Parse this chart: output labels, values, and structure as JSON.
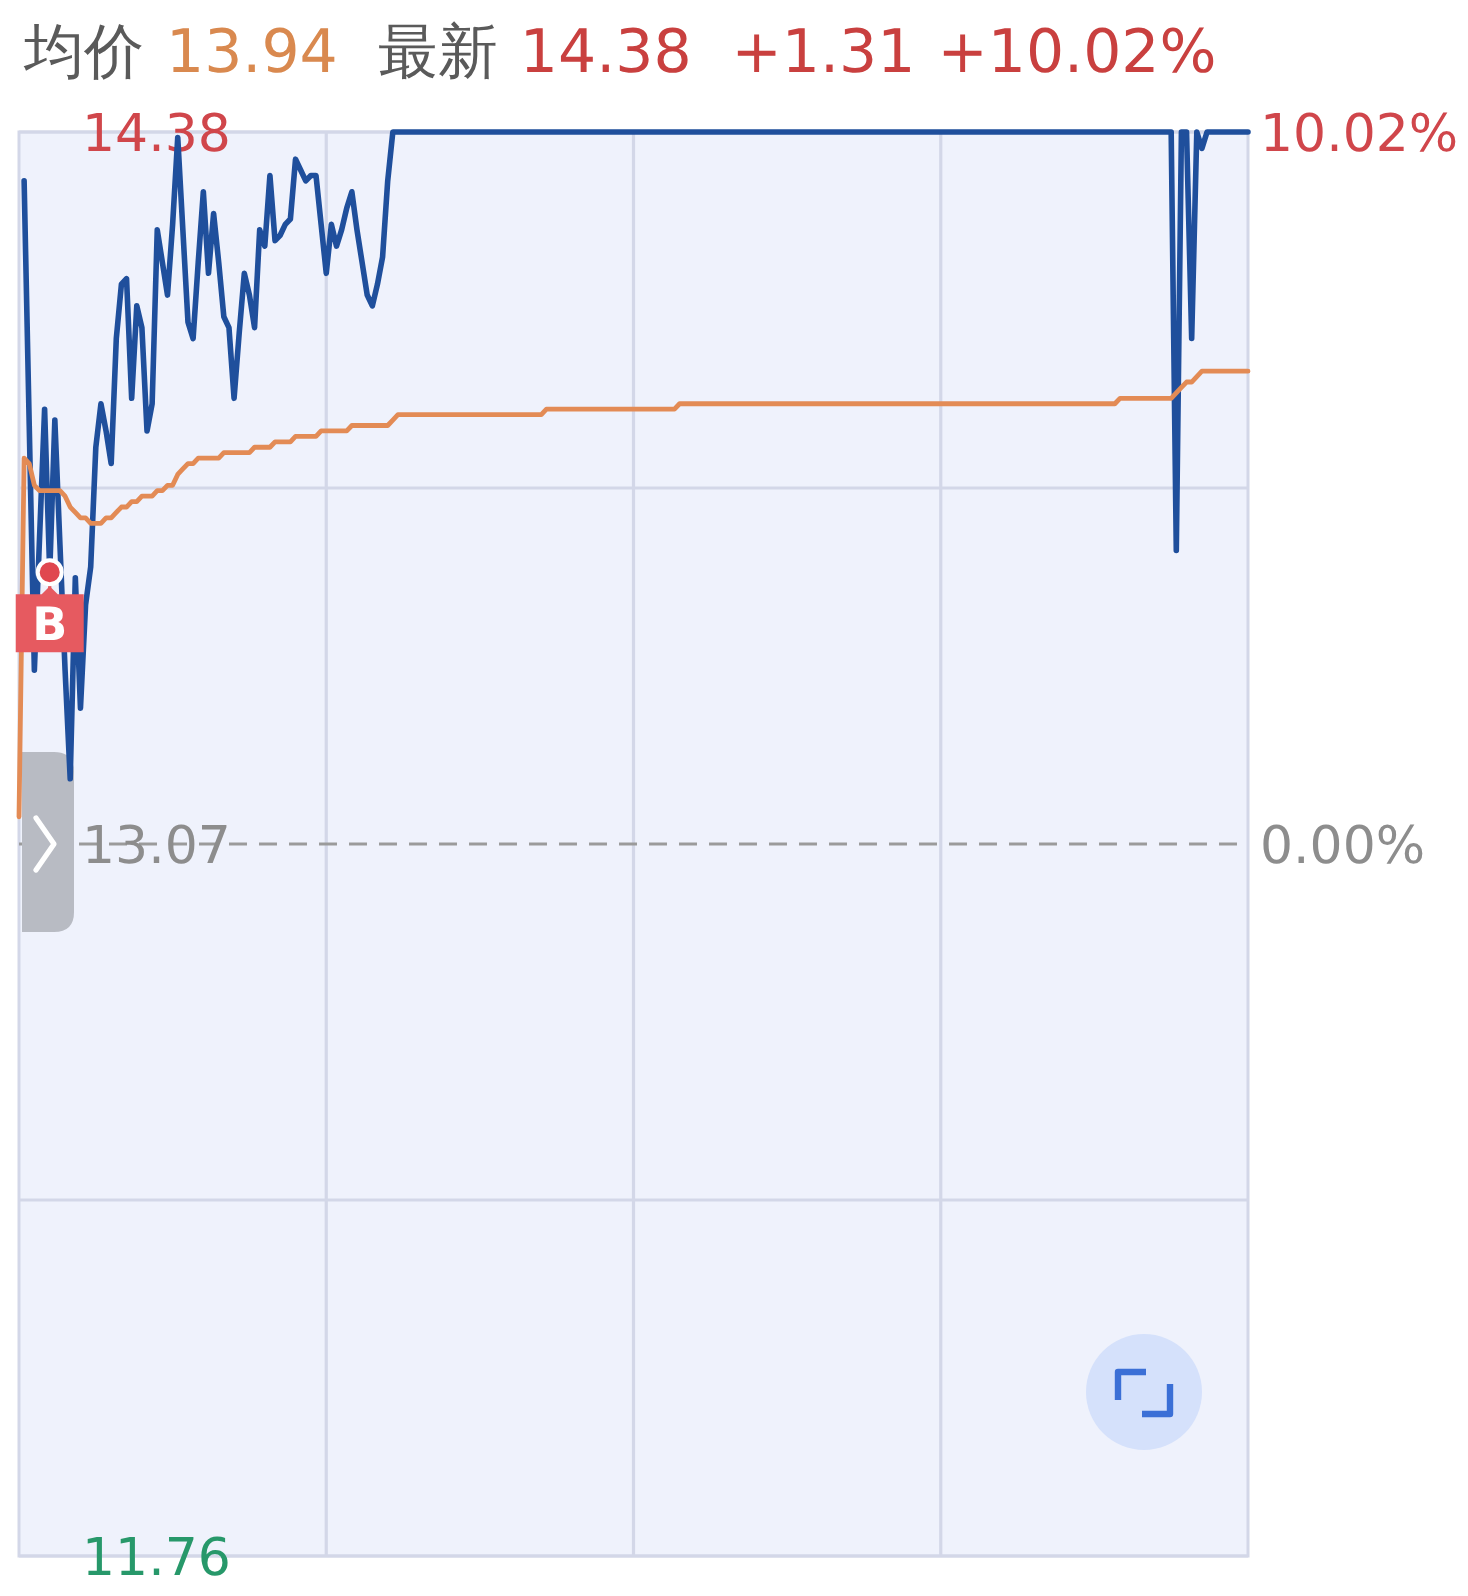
{
  "chart_data": {
    "type": "line",
    "annotations": [
      "均价",
      "13.94",
      "最新",
      "14.38",
      "+1.31",
      "+10.02%"
    ],
    "categories": [
      null,
      null,
      null,
      null,
      null,
      null,
      null,
      null,
      null,
      null,
      null,
      null,
      null,
      null,
      null,
      null,
      null,
      null,
      null,
      null,
      null,
      null,
      null,
      null,
      null,
      null,
      null,
      null,
      null,
      null,
      null,
      null,
      null,
      null,
      null,
      null,
      null,
      null,
      null,
      null,
      null,
      null,
      null,
      null,
      null,
      null,
      null,
      null,
      null,
      null,
      null,
      null,
      null,
      null,
      null,
      null,
      null,
      null,
      null,
      null,
      null,
      null,
      null,
      null,
      null,
      null,
      null,
      null,
      null,
      null,
      null,
      null,
      null,
      null,
      null,
      null,
      null,
      null,
      null,
      null,
      null,
      null,
      null,
      null,
      null,
      null,
      null,
      null,
      null,
      null,
      null,
      null,
      null,
      null,
      null,
      null,
      null,
      null,
      null,
      null,
      null,
      null,
      null,
      null,
      null,
      null,
      null,
      null,
      null,
      null,
      null,
      null,
      null,
      null,
      null,
      null,
      null,
      null,
      null,
      null,
      null,
      null,
      null,
      null,
      null,
      null,
      null,
      null,
      null,
      null,
      null,
      null,
      null,
      null,
      null,
      null,
      null,
      null,
      null,
      null,
      null,
      null,
      null,
      null,
      null,
      null,
      null,
      null,
      null,
      null,
      null,
      null,
      null,
      null,
      null,
      null,
      null,
      null,
      null,
      null,
      null,
      null,
      null,
      null,
      null,
      null,
      null,
      null,
      null,
      null,
      null,
      null,
      null,
      null,
      null,
      null,
      null,
      null,
      null,
      null,
      null,
      null,
      null,
      null,
      null,
      null,
      null,
      null,
      null,
      null,
      null,
      null,
      null,
      null,
      null,
      null,
      null,
      null,
      null,
      null,
      null,
      null,
      null,
      null,
      null,
      null,
      null,
      null,
      null,
      null,
      null,
      null,
      null,
      null,
      null,
      null,
      null,
      null,
      null,
      null,
      null,
      null,
      null,
      null,
      null,
      null,
      null,
      null,
      null,
      null,
      null,
      null,
      null,
      null,
      null,
      null,
      null,
      null,
      null,
      null,
      null
    ],
    "series": [
      {
        "color": "#1f4f9c",
        "values": [
          null,
          14.29,
          13.84,
          13.39,
          13.63,
          13.87,
          13.57,
          13.85,
          13.62,
          13.39,
          13.19,
          13.56,
          13.32,
          13.51,
          13.58,
          13.8,
          13.88,
          13.83,
          13.77,
          14.0,
          14.1,
          14.11,
          13.89,
          14.06,
          14.02,
          13.83,
          13.88,
          14.2,
          14.14,
          14.08,
          14.21,
          14.37,
          14.2,
          14.03,
          14.0,
          14.14,
          14.27,
          14.12,
          14.23,
          14.14,
          14.04,
          14.02,
          13.89,
          14.01,
          14.12,
          14.08,
          14.02,
          14.2,
          14.17,
          14.3,
          14.18,
          14.19,
          14.21,
          14.22,
          14.33,
          14.31,
          14.29,
          14.3,
          14.3,
          14.21,
          14.12,
          14.21,
          14.17,
          14.2,
          14.24,
          14.27,
          14.2,
          14.14,
          14.08,
          14.06,
          14.1,
          14.15,
          14.29,
          14.38,
          14.38,
          14.38,
          14.38,
          14.38,
          14.38,
          14.38,
          14.38,
          14.38,
          14.38,
          14.38,
          14.38,
          14.38,
          14.38,
          14.38,
          14.38,
          14.38,
          14.38,
          14.38,
          14.38,
          14.38,
          14.38,
          14.38,
          14.38,
          14.38,
          14.38,
          14.38,
          14.38,
          14.38,
          14.38,
          14.38,
          14.38,
          14.38,
          14.38,
          14.38,
          14.38,
          14.38,
          14.38,
          14.38,
          14.38,
          14.38,
          14.38,
          14.38,
          14.38,
          14.38,
          14.38,
          14.38,
          14.38,
          14.38,
          14.38,
          14.38,
          14.38,
          14.38,
          14.38,
          14.38,
          14.38,
          14.38,
          14.38,
          14.38,
          14.38,
          14.38,
          14.38,
          14.38,
          14.38,
          14.38,
          14.38,
          14.38,
          14.38,
          14.38,
          14.38,
          14.38,
          14.38,
          14.38,
          14.38,
          14.38,
          14.38,
          14.38,
          14.38,
          14.38,
          14.38,
          14.38,
          14.38,
          14.38,
          14.38,
          14.38,
          14.38,
          14.38,
          14.38,
          14.38,
          14.38,
          14.38,
          14.38,
          14.38,
          14.38,
          14.38,
          14.38,
          14.38,
          14.38,
          14.38,
          14.38,
          14.38,
          14.38,
          14.38,
          14.38,
          14.38,
          14.38,
          14.38,
          14.38,
          14.38,
          14.38,
          14.38,
          14.38,
          14.38,
          14.38,
          14.38,
          14.38,
          14.38,
          14.38,
          14.38,
          14.38,
          14.38,
          14.38,
          14.38,
          14.38,
          14.38,
          14.38,
          14.38,
          14.38,
          14.38,
          14.38,
          14.38,
          14.38,
          14.38,
          14.38,
          14.38,
          14.38,
          14.38,
          14.38,
          14.38,
          14.38,
          14.38,
          14.38,
          14.38,
          14.38,
          14.38,
          14.38,
          14.38,
          14.38,
          14.38,
          14.38,
          14.38,
          14.38,
          14.38,
          13.61,
          14.38,
          14.38,
          14.0,
          14.38,
          14.35,
          14.38,
          14.38,
          14.38,
          14.38,
          14.38,
          14.38,
          14.38,
          14.38,
          14.38
        ],
        "value_labels": [
          null,
          null,
          null,
          null,
          null,
          null,
          "B",
          null,
          null,
          null,
          null,
          null,
          null,
          null,
          null,
          null,
          null,
          null,
          null,
          null,
          null,
          null,
          null,
          null,
          null,
          null,
          null,
          null,
          null,
          null,
          null,
          null,
          null,
          null,
          null,
          null,
          null,
          null,
          null,
          null,
          null,
          null,
          null,
          null,
          null,
          null,
          null,
          null,
          null,
          null,
          null,
          null,
          null,
          null,
          null,
          null,
          null,
          null,
          null,
          null,
          null,
          null,
          null,
          null,
          null,
          null,
          null,
          null,
          null,
          null,
          null,
          null,
          null,
          null,
          null,
          null,
          null,
          null,
          null,
          null,
          null,
          null,
          null,
          null,
          null,
          null,
          null,
          null,
          null,
          null,
          null,
          null,
          null,
          null,
          null,
          null,
          null,
          null,
          null,
          null,
          null,
          null,
          null,
          null,
          null,
          null,
          null,
          null,
          null,
          null,
          null,
          null,
          null,
          null,
          null,
          null,
          null,
          null,
          null,
          null,
          null,
          null,
          null,
          null,
          null,
          null,
          null,
          null,
          null,
          null,
          null,
          null,
          null,
          null,
          null,
          null,
          null,
          null,
          null,
          null,
          null,
          null,
          null,
          null,
          null,
          null,
          null,
          null,
          null,
          null,
          null,
          null,
          null,
          null,
          null,
          null,
          null,
          null,
          null,
          null,
          null,
          null,
          null,
          null,
          null,
          null,
          null,
          null,
          null,
          null,
          null,
          null,
          null,
          null,
          null,
          null,
          null,
          null,
          null,
          null,
          null,
          null,
          null,
          null,
          null,
          null,
          null,
          null,
          null,
          null,
          null,
          null,
          null,
          null,
          null,
          null,
          null,
          null,
          null,
          null,
          null,
          null,
          null,
          null,
          null,
          null,
          null,
          null,
          null,
          null,
          null,
          null,
          null,
          null,
          null,
          null,
          null,
          null,
          null,
          null,
          null,
          null,
          null,
          null,
          null,
          null,
          null,
          null,
          null,
          null,
          null,
          null,
          null,
          null,
          null,
          null,
          null,
          null,
          null,
          null,
          null
        ]
      },
      {
        "color": "#e38b55",
        "values": [
          13.12,
          13.78,
          13.77,
          13.73,
          13.72,
          13.72,
          13.72,
          13.72,
          13.72,
          13.71,
          13.69,
          13.68,
          13.67,
          13.67,
          13.66,
          13.66,
          13.66,
          13.67,
          13.67,
          13.68,
          13.69,
          13.69,
          13.7,
          13.7,
          13.71,
          13.71,
          13.71,
          13.72,
          13.72,
          13.73,
          13.73,
          13.75,
          13.76,
          13.77,
          13.77,
          13.78,
          13.78,
          13.78,
          13.78,
          13.78,
          13.79,
          13.79,
          13.79,
          13.79,
          13.79,
          13.79,
          13.8,
          13.8,
          13.8,
          13.8,
          13.81,
          13.81,
          13.81,
          13.81,
          13.82,
          13.82,
          13.82,
          13.82,
          13.82,
          13.83,
          13.83,
          13.83,
          13.83,
          13.83,
          13.83,
          13.84,
          13.84,
          13.84,
          13.84,
          13.84,
          13.84,
          13.84,
          13.84,
          13.85,
          13.86,
          13.86,
          13.86,
          13.86,
          13.86,
          13.86,
          13.86,
          13.86,
          13.86,
          13.86,
          13.86,
          13.86,
          13.86,
          13.86,
          13.86,
          13.86,
          13.86,
          13.86,
          13.86,
          13.86,
          13.86,
          13.86,
          13.86,
          13.86,
          13.86,
          13.86,
          13.86,
          13.86,
          13.86,
          13.87,
          13.87,
          13.87,
          13.87,
          13.87,
          13.87,
          13.87,
          13.87,
          13.87,
          13.87,
          13.87,
          13.87,
          13.87,
          13.87,
          13.87,
          13.87,
          13.87,
          13.87,
          13.87,
          13.87,
          13.87,
          13.87,
          13.87,
          13.87,
          13.87,
          13.87,
          13.88,
          13.88,
          13.88,
          13.88,
          13.88,
          13.88,
          13.88,
          13.88,
          13.88,
          13.88,
          13.88,
          13.88,
          13.88,
          13.88,
          13.88,
          13.88,
          13.88,
          13.88,
          13.88,
          13.88,
          13.88,
          13.88,
          13.88,
          13.88,
          13.88,
          13.88,
          13.88,
          13.88,
          13.88,
          13.88,
          13.88,
          13.88,
          13.88,
          13.88,
          13.88,
          13.88,
          13.88,
          13.88,
          13.88,
          13.88,
          13.88,
          13.88,
          13.88,
          13.88,
          13.88,
          13.88,
          13.88,
          13.88,
          13.88,
          13.88,
          13.88,
          13.88,
          13.88,
          13.88,
          13.88,
          13.88,
          13.88,
          13.88,
          13.88,
          13.88,
          13.88,
          13.88,
          13.88,
          13.88,
          13.88,
          13.88,
          13.88,
          13.88,
          13.88,
          13.88,
          13.88,
          13.88,
          13.88,
          13.88,
          13.88,
          13.88,
          13.88,
          13.88,
          13.88,
          13.88,
          13.88,
          13.88,
          13.88,
          13.88,
          13.88,
          13.88,
          13.89,
          13.89,
          13.89,
          13.89,
          13.89,
          13.89,
          13.89,
          13.89,
          13.89,
          13.89,
          13.89,
          13.9,
          13.91,
          13.92,
          13.92,
          13.93,
          13.94,
          13.94,
          13.94,
          13.94,
          13.94,
          13.94,
          13.94,
          13.94,
          13.94,
          13.94
        ]
      }
    ],
    "ylim": [
      11.76,
      14.38
    ],
    "yticks": [
      14.38,
      {
        "value": 13.725,
        "label": null
      },
      13.07,
      {
        "value": 12.415,
        "label": null
      },
      11.76
    ],
    "y2lim": [
      -10.02,
      10.02
    ],
    "y2ticks": [
      {
        "value": 10.02,
        "label": "10.02%"
      },
      {
        "value": 0,
        "label": "0.00%"
      }
    ],
    "ref_lines": [
      {
        "axis": "y",
        "value": 13.07,
        "line_style": "dashed",
        "color": "#9b9b9b"
      }
    ],
    "grid": true
  }
}
